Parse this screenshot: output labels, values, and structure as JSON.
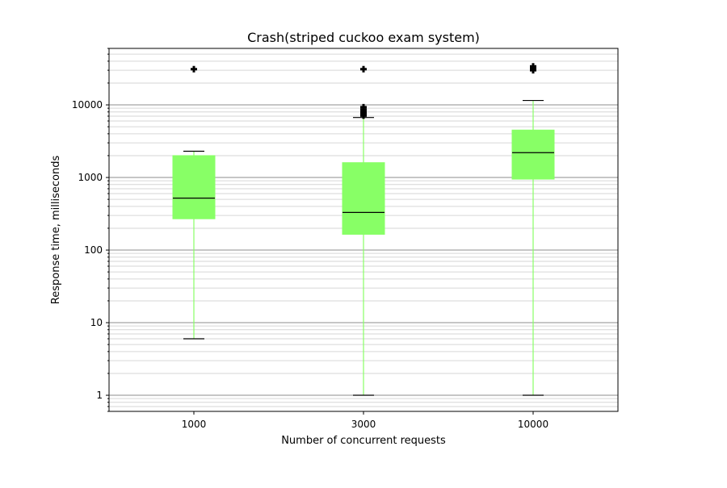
{
  "chart_data": {
    "type": "box",
    "title": "Crash(striped cuckoo exam system)",
    "xlabel": "Number of concurrent requests",
    "ylabel": "Response time, milliseconds",
    "yscale": "log",
    "ylim": [
      0.6,
      60000
    ],
    "grid": {
      "major": true,
      "minor": true
    },
    "yticks": [
      "1",
      "10",
      "100",
      "1000",
      "10000"
    ],
    "categories": [
      "1000",
      "3000",
      "10000"
    ],
    "box_color": "#88ff66",
    "median_color": "#000000",
    "boxes": [
      {
        "category": "1000",
        "whisker_low": 6,
        "q1": 270,
        "median": 520,
        "q3": 2000,
        "whisker_high": 2300,
        "outliers": [
          31000
        ]
      },
      {
        "category": "3000",
        "whisker_low": 1,
        "q1": 165,
        "median": 330,
        "q3": 1600,
        "whisker_high": 6700,
        "outliers": [
          7100,
          7500,
          8000,
          8600,
          9300,
          31000
        ]
      },
      {
        "category": "10000",
        "whisker_low": 1,
        "q1": 950,
        "median": 2200,
        "q3": 4500,
        "whisker_high": 11500,
        "outliers": [
          30000,
          32000,
          34000
        ]
      }
    ]
  }
}
